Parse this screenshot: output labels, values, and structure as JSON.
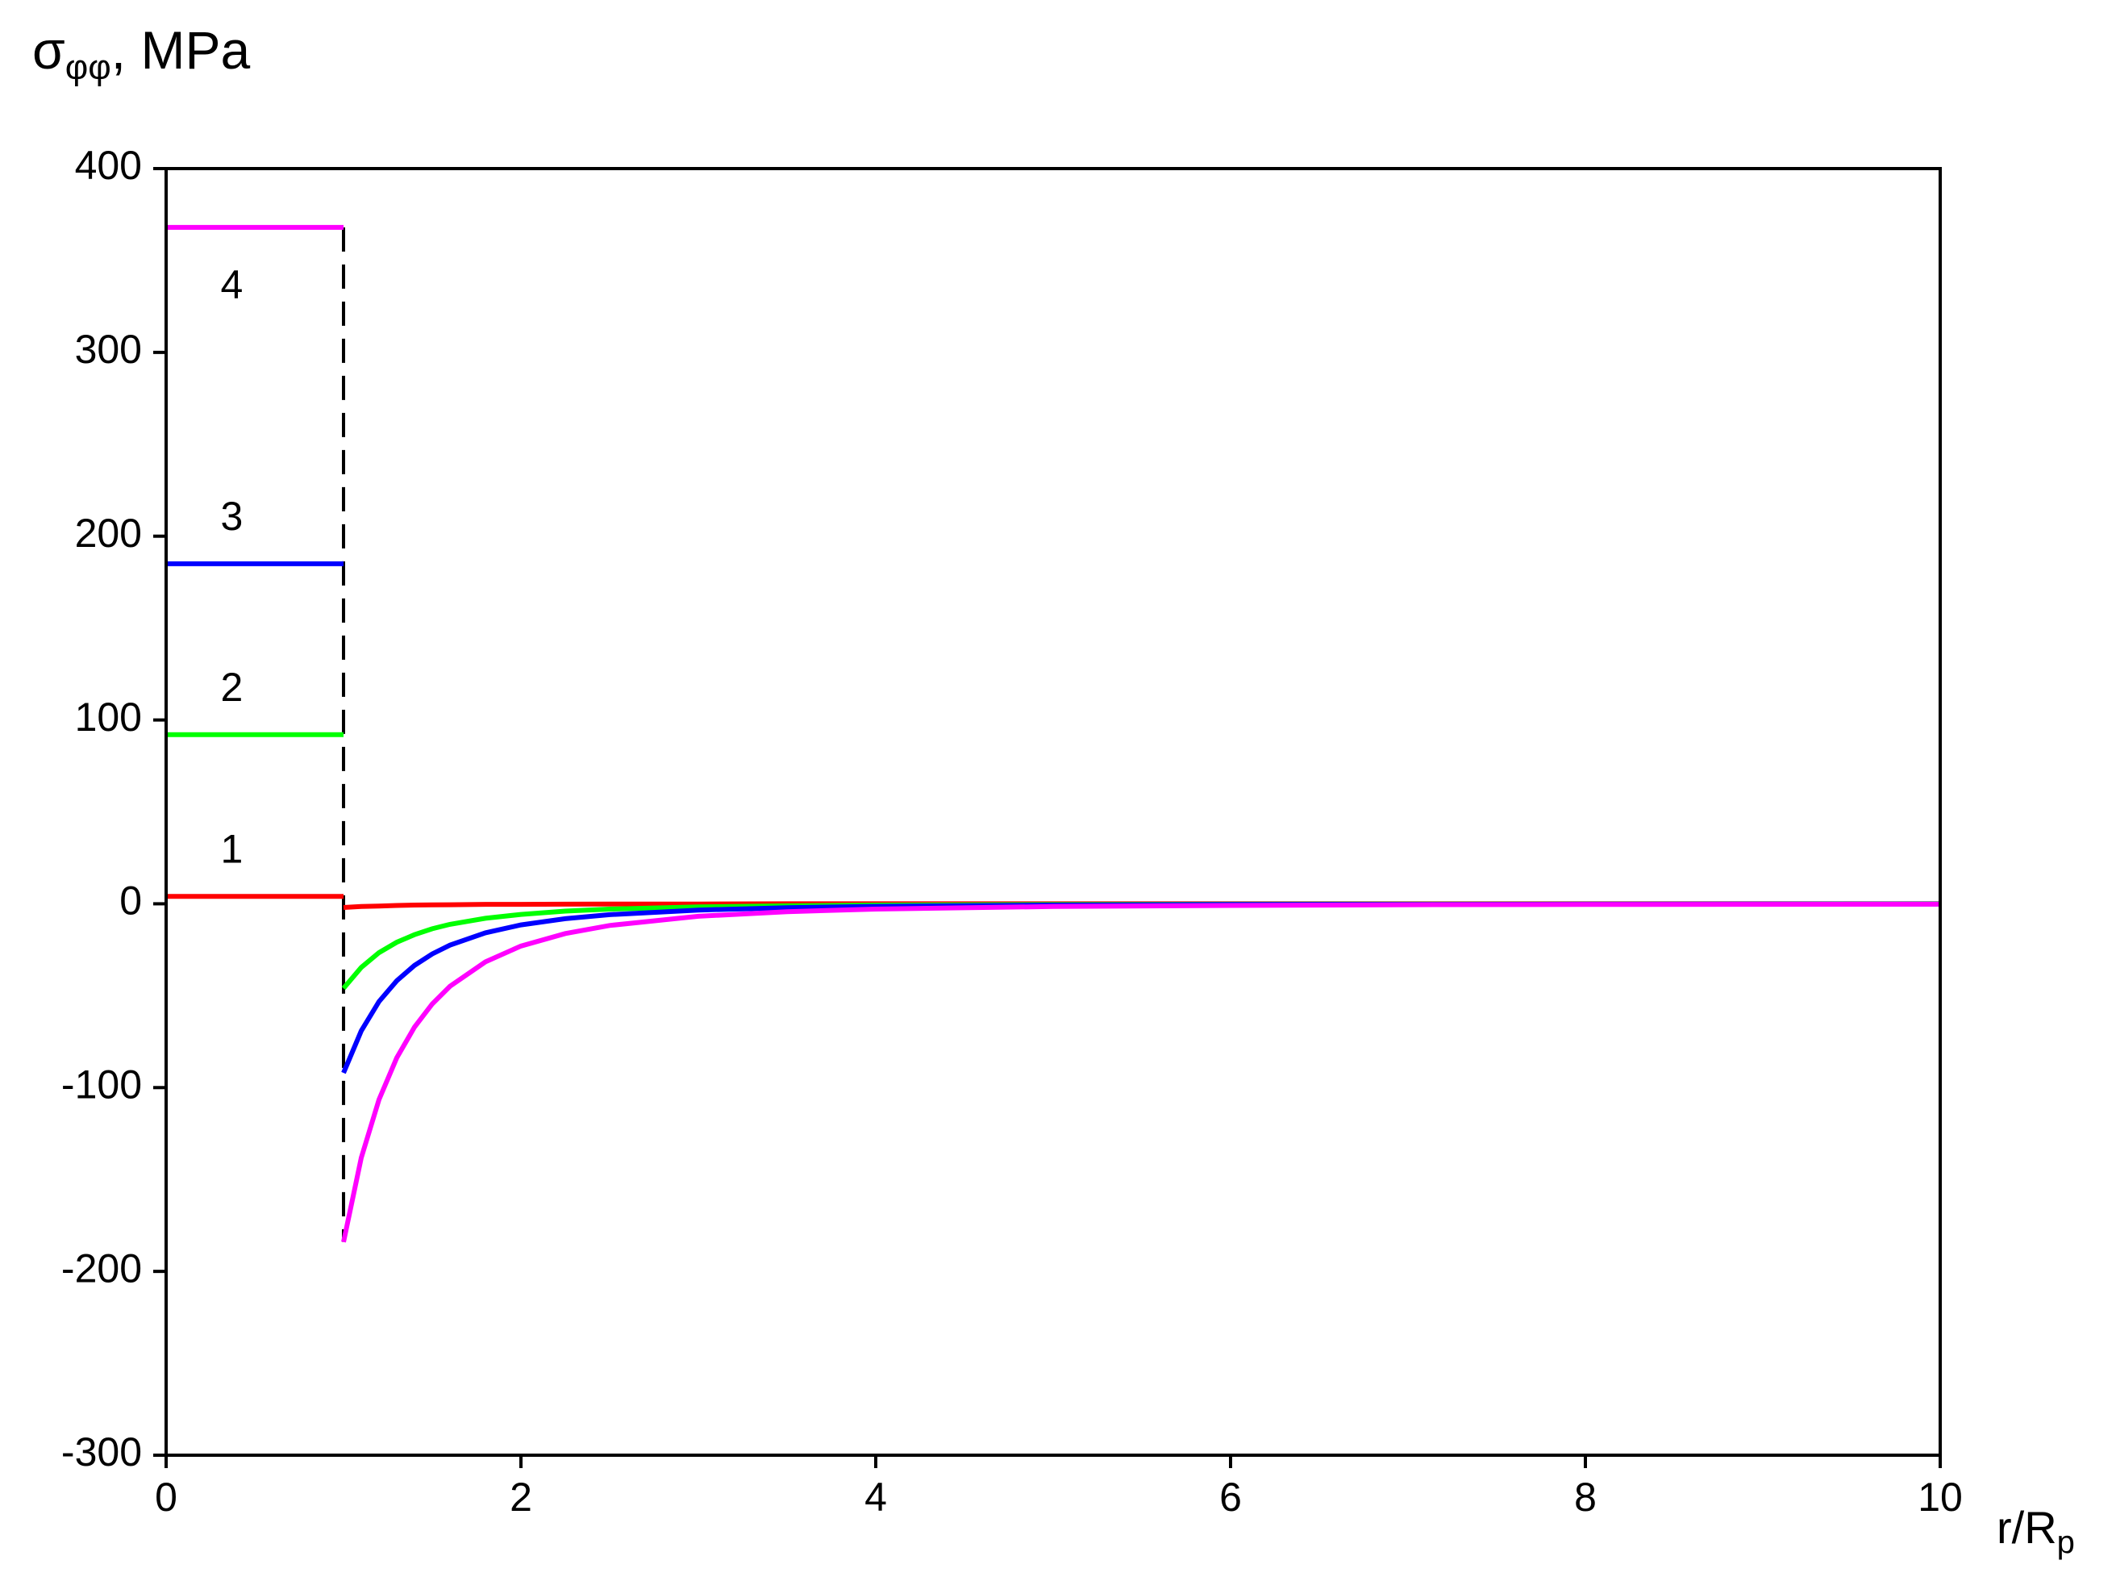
{
  "chart_data": {
    "type": "line",
    "ylabel": {
      "symbol": "σ",
      "subscript": "φφ",
      "unit": ", MPa"
    },
    "xlabel": {
      "main": "r/R",
      "subscript": "p"
    },
    "x": [
      0,
      1,
      1,
      1,
      1.1,
      1.2,
      1.3,
      1.4,
      1.5,
      1.6,
      1.8,
      2,
      2.25,
      2.5,
      3,
      3.5,
      4,
      5,
      6,
      7,
      8,
      9,
      10
    ],
    "series": [
      {
        "name": "1",
        "color": "#ff0000",
        "values": [
          4,
          4,
          null,
          -2,
          -1.5,
          -1.2,
          -0.9,
          -0.7,
          -0.6,
          -0.5,
          -0.3,
          -0.3,
          -0.2,
          -0.1,
          -0.1,
          0,
          0,
          0,
          0,
          0,
          0,
          0,
          0
        ]
      },
      {
        "name": "2",
        "color": "#00ff00",
        "values": [
          92,
          92,
          null,
          -46,
          -34.6,
          -26.6,
          -20.9,
          -16.8,
          -13.6,
          -11.2,
          -7.9,
          -5.8,
          -4,
          -2.9,
          -1.7,
          -1.1,
          -0.7,
          -0.4,
          -0.2,
          -0.1,
          -0.1,
          -0.1,
          0
        ]
      },
      {
        "name": "3",
        "color": "#0000ff",
        "values": [
          185,
          185,
          null,
          -92,
          -69.1,
          -53.2,
          -41.9,
          -33.5,
          -27.3,
          -22.5,
          -15.8,
          -11.5,
          -8.1,
          -5.9,
          -3.4,
          -2.1,
          -1.4,
          -0.7,
          -0.4,
          -0.3,
          -0.2,
          -0.1,
          -0.1
        ]
      },
      {
        "name": "4",
        "color": "#ff00ff",
        "values": [
          368,
          368,
          null,
          -184,
          -138.2,
          -106.5,
          -83.8,
          -67.1,
          -54.5,
          -44.9,
          -31.6,
          -23,
          -16.2,
          -11.8,
          -6.8,
          -4.3,
          -2.9,
          -1.5,
          -0.9,
          -0.5,
          -0.4,
          -0.3,
          -0.2
        ]
      }
    ],
    "xlim": [
      0,
      10
    ],
    "xticks": [
      0,
      2,
      4,
      6,
      8,
      10
    ],
    "ylim": [
      -300,
      400
    ],
    "yticks": [
      -300,
      -200,
      -100,
      0,
      100,
      200,
      300,
      400
    ],
    "grid": false
  }
}
